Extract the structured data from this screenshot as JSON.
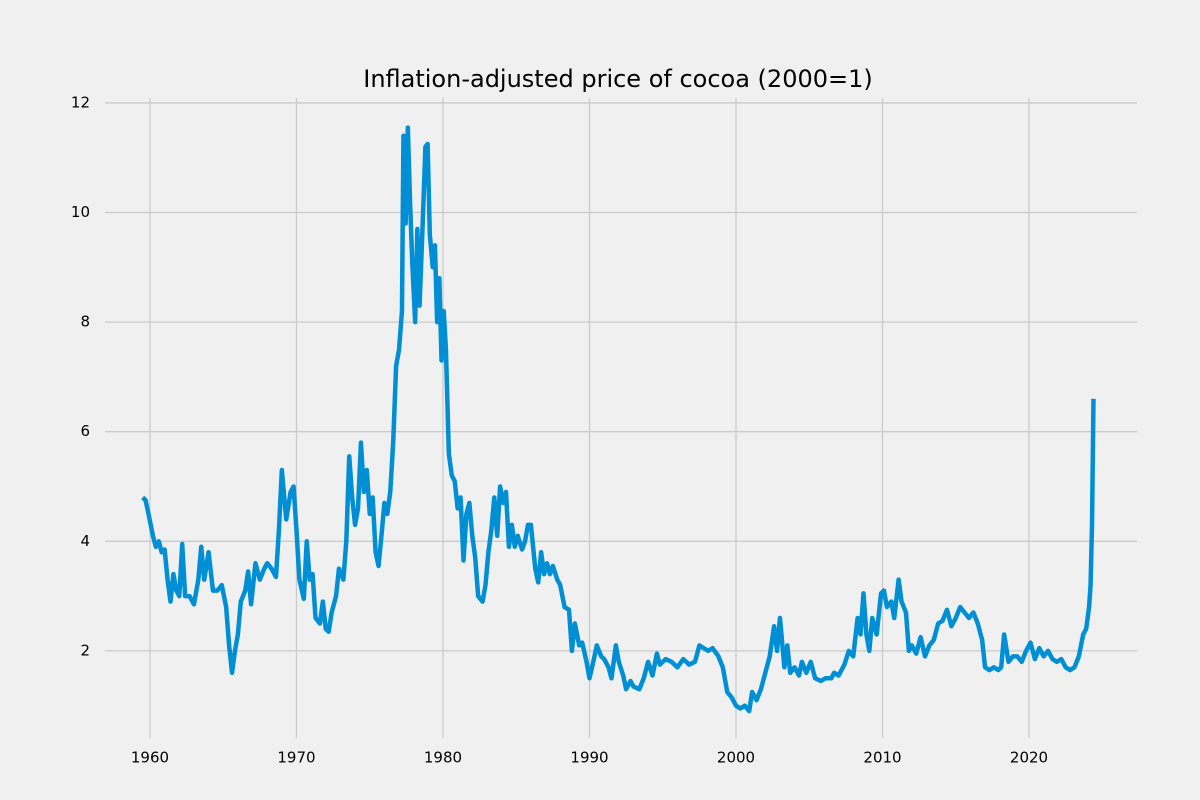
{
  "chart_data": {
    "type": "line",
    "title": "Inflation-adjusted price of cocoa (2000=1)",
    "color": "#008fd5",
    "grid": true,
    "xlim": [
      1956.93,
      2027.37
    ],
    "xticks": [
      1960,
      1970,
      1980,
      1990,
      2000,
      2010,
      2020
    ],
    "ylim": [
      0.41,
      12.09
    ],
    "yticks": [
      2,
      4,
      6,
      8,
      10,
      12
    ],
    "x": [
      1959.5,
      1959.7,
      1959.9,
      1960.2,
      1960.4,
      1960.6,
      1960.8,
      1961.0,
      1961.2,
      1961.4,
      1961.6,
      1961.8,
      1962.0,
      1962.2,
      1962.4,
      1962.7,
      1963.0,
      1963.3,
      1963.5,
      1963.7,
      1964.0,
      1964.3,
      1964.6,
      1964.9,
      1965.2,
      1965.4,
      1965.6,
      1965.8,
      1966.0,
      1966.2,
      1966.5,
      1966.7,
      1966.9,
      1967.2,
      1967.5,
      1967.8,
      1968.0,
      1968.3,
      1968.6,
      1968.8,
      1969.0,
      1969.3,
      1969.6,
      1969.8,
      1970.0,
      1970.2,
      1970.5,
      1970.7,
      1970.9,
      1971.1,
      1971.3,
      1971.6,
      1971.8,
      1972.0,
      1972.2,
      1972.4,
      1972.7,
      1972.9,
      1973.2,
      1973.4,
      1973.6,
      1973.8,
      1974.0,
      1974.2,
      1974.4,
      1974.6,
      1974.8,
      1975.0,
      1975.2,
      1975.4,
      1975.6,
      1975.8,
      1976.0,
      1976.2,
      1976.4,
      1976.6,
      1976.8,
      1977.0,
      1977.2,
      1977.3,
      1977.45,
      1977.6,
      1977.75,
      1977.9,
      1978.1,
      1978.25,
      1978.4,
      1978.6,
      1978.8,
      1978.95,
      1979.1,
      1979.3,
      1979.45,
      1979.6,
      1979.75,
      1979.9,
      1980.05,
      1980.2,
      1980.4,
      1980.6,
      1980.8,
      1981.0,
      1981.2,
      1981.4,
      1981.6,
      1981.8,
      1982.0,
      1982.2,
      1982.4,
      1982.7,
      1982.9,
      1983.1,
      1983.3,
      1983.5,
      1983.7,
      1983.9,
      1984.1,
      1984.3,
      1984.5,
      1984.7,
      1984.9,
      1985.1,
      1985.4,
      1985.6,
      1985.8,
      1986.0,
      1986.3,
      1986.5,
      1986.7,
      1986.9,
      1987.1,
      1987.3,
      1987.5,
      1987.8,
      1988.0,
      1988.3,
      1988.6,
      1988.8,
      1989.0,
      1989.3,
      1989.5,
      1989.8,
      1990.0,
      1990.3,
      1990.5,
      1990.8,
      1991.0,
      1991.3,
      1991.5,
      1991.8,
      1992.0,
      1992.3,
      1992.5,
      1992.8,
      1993.0,
      1993.4,
      1993.7,
      1994.0,
      1994.3,
      1994.6,
      1994.8,
      1995.2,
      1995.6,
      1996.0,
      1996.4,
      1996.8,
      1997.2,
      1997.5,
      1997.8,
      1998.1,
      1998.4,
      1998.8,
      1999.1,
      1999.4,
      1999.7,
      2000.0,
      2000.3,
      2000.6,
      2000.9,
      2001.1,
      2001.4,
      2001.7,
      2002.0,
      2002.3,
      2002.6,
      2002.8,
      2003.0,
      2003.3,
      2003.5,
      2003.7,
      2004.0,
      2004.3,
      2004.5,
      2004.8,
      2005.1,
      2005.4,
      2005.8,
      2006.1,
      2006.5,
      2006.7,
      2007.0,
      2007.4,
      2007.7,
      2008.0,
      2008.3,
      2008.5,
      2008.7,
      2008.9,
      2009.1,
      2009.3,
      2009.6,
      2009.9,
      2010.1,
      2010.3,
      2010.6,
      2010.8,
      2011.1,
      2011.3,
      2011.6,
      2011.8,
      2012.0,
      2012.3,
      2012.6,
      2012.9,
      2013.2,
      2013.5,
      2013.8,
      2014.1,
      2014.4,
      2014.7,
      2015.0,
      2015.3,
      2015.6,
      2015.9,
      2016.2,
      2016.5,
      2016.8,
      2017.0,
      2017.3,
      2017.6,
      2017.9,
      2018.1,
      2018.3,
      2018.6,
      2018.9,
      2019.2,
      2019.5,
      2019.8,
      2020.1,
      2020.4,
      2020.7,
      2021.0,
      2021.3,
      2021.6,
      2021.9,
      2022.2,
      2022.5,
      2022.8,
      2023.1,
      2023.4,
      2023.7,
      2023.9,
      2024.1,
      2024.2,
      2024.3,
      2024.4
    ],
    "values": [
      4.8,
      4.75,
      4.5,
      4.1,
      3.9,
      4.0,
      3.8,
      3.85,
      3.3,
      2.9,
      3.4,
      3.1,
      3.0,
      3.95,
      3.0,
      3.0,
      2.85,
      3.3,
      3.9,
      3.3,
      3.8,
      3.1,
      3.1,
      3.2,
      2.8,
      2.1,
      1.6,
      2.0,
      2.3,
      2.9,
      3.1,
      3.45,
      2.85,
      3.6,
      3.3,
      3.5,
      3.6,
      3.5,
      3.35,
      4.2,
      5.3,
      4.4,
      4.9,
      5.0,
      4.2,
      3.3,
      2.95,
      4.0,
      3.3,
      3.4,
      2.6,
      2.5,
      2.9,
      2.4,
      2.35,
      2.7,
      3.0,
      3.5,
      3.3,
      4.0,
      5.55,
      4.8,
      4.3,
      4.6,
      5.8,
      4.9,
      5.3,
      4.5,
      4.8,
      3.8,
      3.55,
      4.1,
      4.7,
      4.5,
      4.9,
      5.8,
      7.2,
      7.5,
      8.2,
      11.4,
      9.8,
      11.55,
      10.2,
      9.1,
      8.0,
      9.7,
      8.3,
      9.7,
      11.2,
      11.25,
      9.6,
      9.0,
      9.4,
      8.0,
      8.8,
      7.3,
      8.2,
      7.5,
      5.6,
      5.2,
      5.1,
      4.6,
      4.8,
      3.65,
      4.5,
      4.7,
      4.1,
      3.7,
      3.0,
      2.9,
      3.2,
      3.8,
      4.2,
      4.8,
      4.1,
      5.0,
      4.7,
      4.9,
      3.9,
      4.3,
      3.9,
      4.1,
      3.85,
      4.0,
      4.3,
      4.3,
      3.5,
      3.25,
      3.8,
      3.4,
      3.6,
      3.4,
      3.55,
      3.3,
      3.2,
      2.8,
      2.75,
      2.0,
      2.5,
      2.1,
      2.15,
      1.8,
      1.5,
      1.85,
      2.1,
      1.9,
      1.85,
      1.7,
      1.5,
      2.1,
      1.8,
      1.55,
      1.3,
      1.45,
      1.35,
      1.3,
      1.5,
      1.8,
      1.55,
      1.95,
      1.75,
      1.85,
      1.8,
      1.7,
      1.85,
      1.75,
      1.8,
      2.1,
      2.05,
      2.0,
      2.05,
      1.9,
      1.7,
      1.25,
      1.15,
      1.0,
      0.95,
      1.0,
      0.9,
      1.25,
      1.1,
      1.3,
      1.6,
      1.9,
      2.45,
      2.0,
      2.6,
      1.7,
      2.1,
      1.6,
      1.7,
      1.55,
      1.8,
      1.6,
      1.8,
      1.5,
      1.45,
      1.5,
      1.5,
      1.6,
      1.55,
      1.75,
      2.0,
      1.9,
      2.6,
      2.3,
      3.05,
      2.3,
      2.0,
      2.6,
      2.3,
      3.05,
      3.1,
      2.8,
      2.9,
      2.6,
      3.3,
      2.9,
      2.7,
      2.0,
      2.1,
      1.95,
      2.25,
      1.9,
      2.1,
      2.2,
      2.5,
      2.55,
      2.75,
      2.45,
      2.6,
      2.8,
      2.7,
      2.6,
      2.7,
      2.5,
      2.2,
      1.7,
      1.65,
      1.7,
      1.65,
      1.7,
      2.3,
      1.8,
      1.9,
      1.9,
      1.8,
      2.0,
      2.15,
      1.85,
      2.05,
      1.9,
      2.0,
      1.85,
      1.8,
      1.85,
      1.7,
      1.65,
      1.7,
      1.9,
      2.3,
      2.4,
      2.8,
      3.2,
      4.3,
      6.6
    ]
  }
}
